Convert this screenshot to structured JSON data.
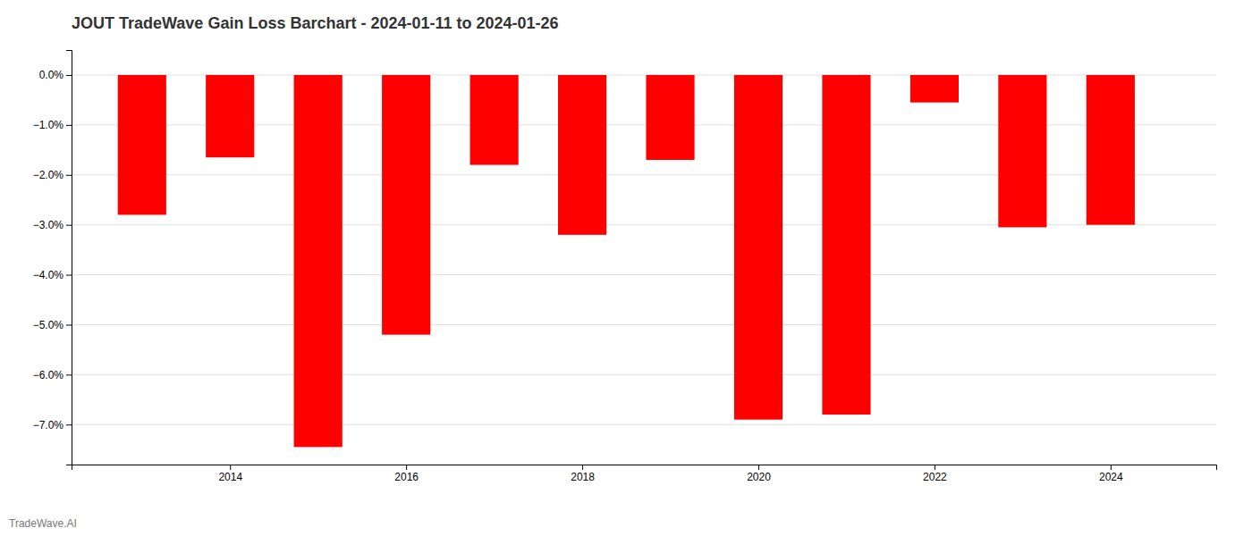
{
  "chart_data": {
    "type": "bar",
    "title": "JOUT TradeWave Gain Loss Barchart - 2024-01-11 to 2024-01-26",
    "annotations": [
      "TradeWave.AI"
    ],
    "x": [
      2013,
      2014,
      2015,
      2016,
      2017,
      2018,
      2019,
      2020,
      2021,
      2022,
      2023,
      2024
    ],
    "values": [
      -2.8,
      -1.65,
      -7.45,
      -5.2,
      -1.8,
      -3.2,
      -1.7,
      -6.9,
      -6.8,
      -0.55,
      -3.05,
      -3.0
    ],
    "color": "#ff0000",
    "xlim": [
      2012.2,
      2025.2
    ],
    "xticks": [
      2014,
      2016,
      2018,
      2020,
      2022,
      2024
    ],
    "ylim": [
      -7.8,
      0.5
    ],
    "yticks": [
      {
        "value": 0.0,
        "label": "0.0%"
      },
      {
        "value": -1.0,
        "label": "−1.0%"
      },
      {
        "value": -2.0,
        "label": "−2.0%"
      },
      {
        "value": -3.0,
        "label": "−3.0%"
      },
      {
        "value": -4.0,
        "label": "−4.0%"
      },
      {
        "value": -5.0,
        "label": "−5.0%"
      },
      {
        "value": -6.0,
        "label": "−6.0%"
      },
      {
        "value": -7.0,
        "label": "−7.0%"
      }
    ],
    "grid": true
  }
}
